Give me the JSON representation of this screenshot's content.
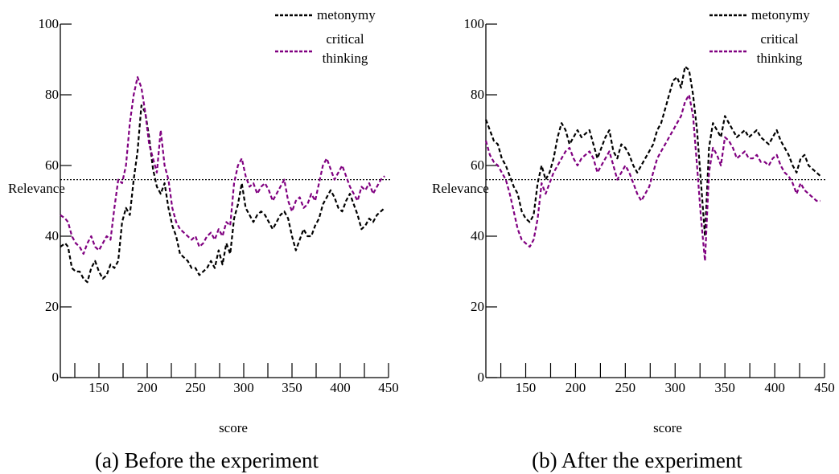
{
  "colors": {
    "metonymy": "#000000",
    "critical_thinking": "#800080",
    "reference": "#000000"
  },
  "chart_data": [
    {
      "type": "line",
      "caption": "(a) Before the experiment",
      "xlabel": "score",
      "ylabel": "Relevance",
      "xlim": [
        110,
        450
      ],
      "ylim": [
        0,
        100
      ],
      "xticks": [
        "150",
        "200",
        "250",
        "300",
        "350",
        "400",
        "450"
      ],
      "yticks": [
        "0",
        "20",
        "40",
        "60",
        "80",
        "100"
      ],
      "reference_line": 56,
      "legend": "top-right",
      "series": [
        {
          "name": "metonymy",
          "color": "#000000",
          "x": [
            110,
            115,
            118,
            122,
            126,
            130,
            134,
            138,
            142,
            146,
            150,
            154,
            158,
            162,
            166,
            170,
            174,
            178,
            182,
            186,
            190,
            194,
            198,
            202,
            206,
            210,
            214,
            218,
            222,
            226,
            230,
            234,
            238,
            242,
            246,
            250,
            254,
            258,
            262,
            266,
            270,
            274,
            278,
            282,
            286,
            290,
            294,
            298,
            302,
            306,
            310,
            314,
            318,
            322,
            326,
            330,
            334,
            338,
            342,
            346,
            350,
            354,
            358,
            362,
            366,
            370,
            374,
            378,
            382,
            386,
            390,
            394,
            398,
            402,
            406,
            410,
            414,
            418,
            422,
            426,
            430,
            434,
            438,
            442,
            446
          ],
          "y": [
            37,
            38,
            37,
            31,
            30,
            30,
            28,
            27,
            31,
            33,
            30,
            28,
            29,
            32,
            31,
            33,
            44,
            48,
            46,
            56,
            64,
            77,
            75,
            68,
            59,
            54,
            52,
            55,
            48,
            43,
            40,
            35,
            34,
            33,
            31,
            31,
            29,
            30,
            31,
            33,
            31,
            36,
            32,
            38,
            35,
            45,
            49,
            55,
            48,
            46,
            44,
            46,
            47,
            46,
            44,
            42,
            44,
            46,
            47,
            45,
            40,
            36,
            39,
            42,
            40,
            40,
            43,
            45,
            49,
            51,
            53,
            51,
            48,
            47,
            50,
            52,
            49,
            46,
            42,
            43,
            45,
            44,
            46,
            47,
            48
          ]
        },
        {
          "name": "critical thinking",
          "color": "#800080",
          "x": [
            110,
            115,
            118,
            122,
            126,
            130,
            134,
            138,
            142,
            146,
            150,
            154,
            158,
            162,
            166,
            170,
            174,
            178,
            182,
            186,
            190,
            194,
            198,
            202,
            206,
            210,
            214,
            218,
            222,
            226,
            230,
            234,
            238,
            242,
            246,
            250,
            254,
            258,
            262,
            266,
            270,
            274,
            278,
            282,
            286,
            290,
            294,
            298,
            302,
            306,
            310,
            314,
            318,
            322,
            326,
            330,
            334,
            338,
            342,
            346,
            350,
            354,
            358,
            362,
            366,
            370,
            374,
            378,
            382,
            386,
            390,
            394,
            398,
            402,
            406,
            410,
            414,
            418,
            422,
            426,
            430,
            434,
            438,
            442,
            446
          ],
          "y": [
            46,
            45,
            44,
            40,
            38,
            37,
            35,
            38,
            40,
            37,
            36,
            38,
            40,
            39,
            48,
            56,
            55,
            60,
            72,
            80,
            85,
            82,
            75,
            66,
            62,
            58,
            70,
            60,
            56,
            48,
            44,
            42,
            41,
            40,
            39,
            40,
            37,
            38,
            40,
            41,
            39,
            42,
            40,
            44,
            43,
            55,
            60,
            62,
            57,
            54,
            55,
            52,
            54,
            55,
            53,
            50,
            52,
            54,
            56,
            50,
            47,
            50,
            51,
            48,
            49,
            52,
            50,
            55,
            60,
            62,
            59,
            56,
            58,
            60,
            57,
            54,
            52,
            50,
            54,
            53,
            55,
            52,
            54,
            56,
            57
          ]
        }
      ]
    },
    {
      "type": "line",
      "caption": "(b) After the experiment",
      "xlabel": "score",
      "ylabel": "Relevance",
      "xlim": [
        110,
        450
      ],
      "ylim": [
        0,
        100
      ],
      "xticks": [
        "150",
        "200",
        "250",
        "300",
        "350",
        "400",
        "450"
      ],
      "yticks": [
        "0",
        "20",
        "40",
        "60",
        "80",
        "100"
      ],
      "reference_line": 56,
      "legend": "top-right",
      "series": [
        {
          "name": "metonymy",
          "color": "#000000",
          "x": [
            110,
            114,
            118,
            122,
            126,
            130,
            134,
            138,
            142,
            146,
            150,
            154,
            158,
            162,
            166,
            170,
            174,
            178,
            182,
            186,
            190,
            194,
            198,
            202,
            206,
            210,
            214,
            218,
            222,
            226,
            230,
            234,
            238,
            242,
            246,
            250,
            254,
            258,
            262,
            266,
            270,
            274,
            278,
            282,
            286,
            290,
            294,
            298,
            302,
            306,
            310,
            314,
            318,
            322,
            326,
            330,
            334,
            338,
            342,
            346,
            350,
            354,
            358,
            362,
            366,
            370,
            374,
            378,
            382,
            386,
            390,
            394,
            398,
            402,
            406,
            410,
            414,
            418,
            422,
            426,
            430,
            434,
            438,
            442,
            446
          ],
          "y": [
            73,
            70,
            67,
            66,
            62,
            60,
            57,
            54,
            52,
            47,
            45,
            44,
            46,
            55,
            60,
            56,
            58,
            62,
            68,
            72,
            70,
            66,
            68,
            70,
            68,
            69,
            70,
            66,
            62,
            65,
            68,
            70,
            64,
            62,
            66,
            65,
            63,
            60,
            58,
            60,
            62,
            64,
            66,
            70,
            72,
            76,
            80,
            84,
            85,
            82,
            88,
            87,
            80,
            70,
            55,
            40,
            65,
            72,
            70,
            68,
            74,
            72,
            70,
            68,
            69,
            70,
            68,
            69,
            70,
            68,
            67,
            66,
            68,
            70,
            67,
            65,
            63,
            60,
            58,
            62,
            63,
            60,
            59,
            58,
            57
          ]
        },
        {
          "name": "critical thinking",
          "color": "#800080",
          "x": [
            110,
            114,
            118,
            122,
            126,
            130,
            134,
            138,
            142,
            146,
            150,
            154,
            158,
            162,
            166,
            170,
            174,
            178,
            182,
            186,
            190,
            194,
            198,
            202,
            206,
            210,
            214,
            218,
            222,
            226,
            230,
            234,
            238,
            242,
            246,
            250,
            254,
            258,
            262,
            266,
            270,
            274,
            278,
            282,
            286,
            290,
            294,
            298,
            302,
            306,
            310,
            314,
            318,
            322,
            326,
            330,
            334,
            338,
            342,
            346,
            350,
            354,
            358,
            362,
            366,
            370,
            374,
            378,
            382,
            386,
            390,
            394,
            398,
            402,
            406,
            410,
            414,
            418,
            422,
            426,
            430,
            434,
            438,
            442,
            446
          ],
          "y": [
            67,
            63,
            61,
            60,
            58,
            56,
            52,
            47,
            42,
            39,
            38,
            37,
            39,
            45,
            55,
            52,
            55,
            58,
            60,
            62,
            64,
            65,
            62,
            60,
            62,
            63,
            64,
            62,
            58,
            60,
            62,
            64,
            60,
            56,
            58,
            60,
            58,
            55,
            52,
            50,
            52,
            54,
            58,
            62,
            64,
            66,
            68,
            70,
            72,
            74,
            78,
            80,
            74,
            60,
            45,
            33,
            58,
            65,
            63,
            60,
            68,
            67,
            65,
            62,
            63,
            64,
            62,
            62,
            63,
            61,
            61,
            60,
            62,
            63,
            60,
            58,
            57,
            55,
            52,
            55,
            53,
            52,
            51,
            50,
            50
          ]
        }
      ]
    }
  ]
}
